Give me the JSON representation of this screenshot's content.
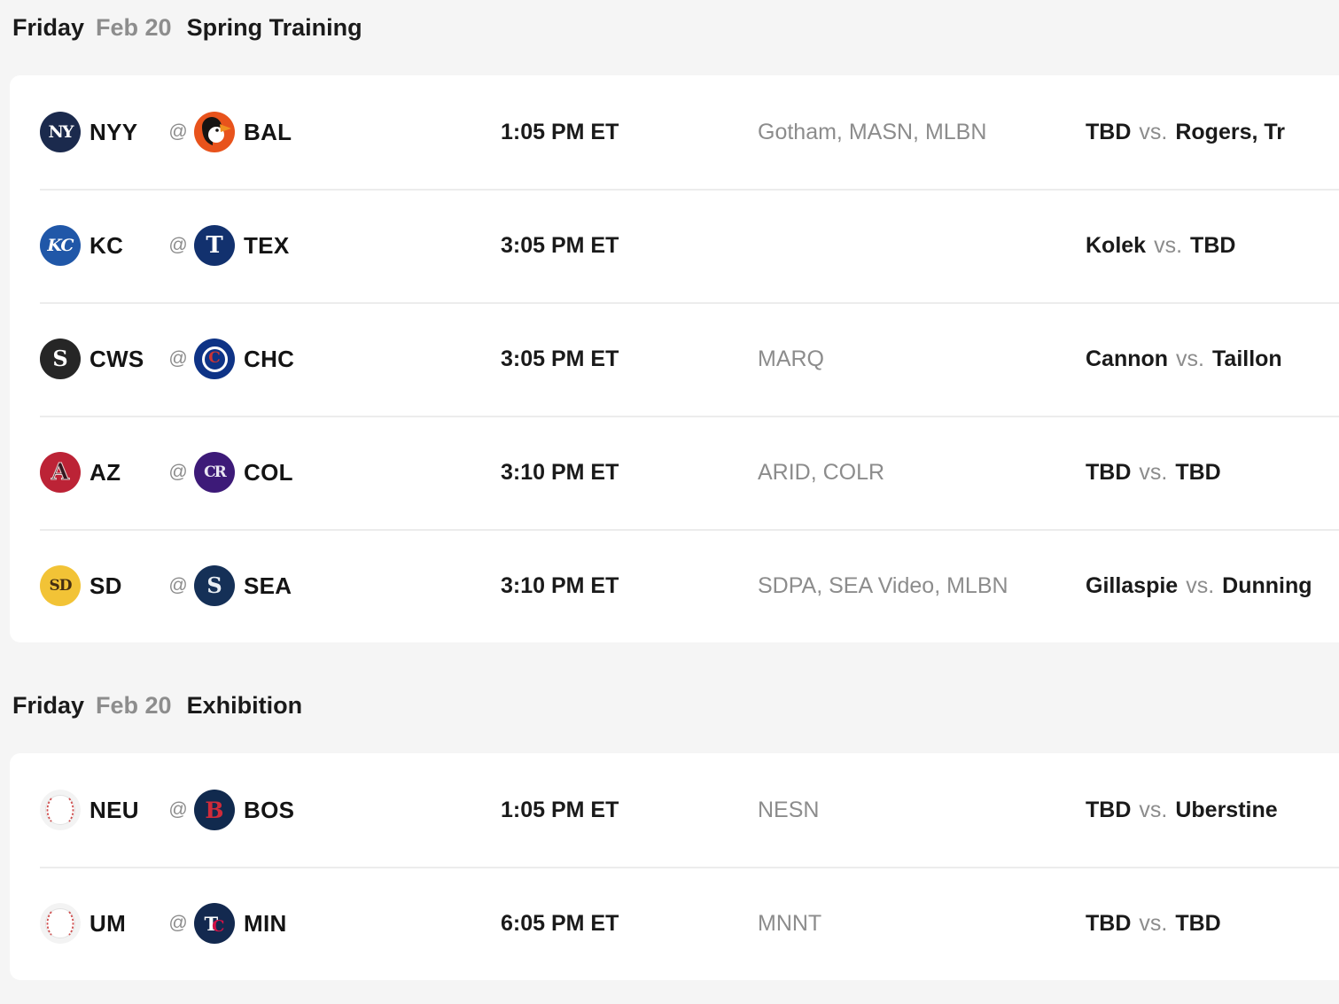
{
  "sections": [
    {
      "header": {
        "day": "Friday",
        "date": "Feb 20",
        "label": "Spring Training"
      },
      "games": [
        {
          "away": {
            "abbr": "NYY",
            "logo": "nyy"
          },
          "home": {
            "abbr": "BAL",
            "logo": "bal"
          },
          "at": "@",
          "time": "1:05 PM ET",
          "tv": "Gotham, MASN, MLBN",
          "pitchers": {
            "away": "TBD",
            "vs": "vs.",
            "home": "Rogers, Tr"
          }
        },
        {
          "away": {
            "abbr": "KC",
            "logo": "kc"
          },
          "home": {
            "abbr": "TEX",
            "logo": "tex"
          },
          "at": "@",
          "time": "3:05 PM ET",
          "tv": "",
          "pitchers": {
            "away": "Kolek",
            "vs": "vs.",
            "home": "TBD"
          }
        },
        {
          "away": {
            "abbr": "CWS",
            "logo": "cws"
          },
          "home": {
            "abbr": "CHC",
            "logo": "chc"
          },
          "at": "@",
          "time": "3:05 PM ET",
          "tv": "MARQ",
          "pitchers": {
            "away": "Cannon",
            "vs": "vs.",
            "home": "Taillon"
          }
        },
        {
          "away": {
            "abbr": "AZ",
            "logo": "az"
          },
          "home": {
            "abbr": "COL",
            "logo": "col"
          },
          "at": "@",
          "time": "3:10 PM ET",
          "tv": "ARID, COLR",
          "pitchers": {
            "away": "TBD",
            "vs": "vs.",
            "home": "TBD"
          }
        },
        {
          "away": {
            "abbr": "SD",
            "logo": "sd"
          },
          "home": {
            "abbr": "SEA",
            "logo": "sea"
          },
          "at": "@",
          "time": "3:10 PM ET",
          "tv": "SDPA, SEA Video, MLBN",
          "pitchers": {
            "away": "Gillaspie",
            "vs": "vs.",
            "home": "Dunning"
          }
        }
      ]
    },
    {
      "header": {
        "day": "Friday",
        "date": "Feb 20",
        "label": "Exhibition"
      },
      "games": [
        {
          "away": {
            "abbr": "NEU",
            "logo": "ball"
          },
          "home": {
            "abbr": "BOS",
            "logo": "bos"
          },
          "at": "@",
          "time": "1:05 PM ET",
          "tv": "NESN",
          "pitchers": {
            "away": "TBD",
            "vs": "vs.",
            "home": "Uberstine"
          }
        },
        {
          "away": {
            "abbr": "UM",
            "logo": "ball"
          },
          "home": {
            "abbr": "MIN",
            "logo": "min"
          },
          "at": "@",
          "time": "6:05 PM ET",
          "tv": "MNNT",
          "pitchers": {
            "away": "TBD",
            "vs": "vs.",
            "home": "TBD"
          }
        }
      ]
    }
  ],
  "colors": {
    "page_bg": "#f5f5f5",
    "card_bg": "#ffffff",
    "muted_text": "#8c8c8c",
    "primary_text": "#161616"
  },
  "logos": {
    "nyy": {
      "bg": "#1b2a4d",
      "text": "NY",
      "fg": "#ffffff",
      "font": "serif",
      "size": 19,
      "ls": -2
    },
    "bal": {
      "bg": "#e8531c",
      "type": "bird"
    },
    "kc": {
      "bg": "#2057a8",
      "text": "KC",
      "fg": "#ffffff",
      "font": "script",
      "size": 19,
      "ls": -1
    },
    "tex": {
      "bg": "#12316e",
      "text": "T",
      "fg": "#ffffff",
      "font": "serif",
      "size": 26
    },
    "cws": {
      "bg": "#262626",
      "text": "S",
      "fg": "#ffffff",
      "font": "serif",
      "size": 24
    },
    "chc": {
      "bg": "#0e3386",
      "type": "cubs"
    },
    "az": {
      "bg": "#bc2336",
      "text": "A",
      "fg": "#34171f",
      "font": "serif",
      "size": 26,
      "stroke": "#e9d4d4"
    },
    "col": {
      "bg": "#3d1a78",
      "text": "CR",
      "fg": "#e9e6f2",
      "font": "serif",
      "size": 17,
      "ls": -2
    },
    "sd": {
      "bg": "#f2c336",
      "text": "SD",
      "fg": "#452f12",
      "font": "serif",
      "size": 17,
      "ls": -1
    },
    "sea": {
      "bg": "#153057",
      "text": "S",
      "fg": "#e9eef3",
      "font": "serif",
      "size": 24
    },
    "bos": {
      "bg": "#112a4e",
      "text": "B",
      "fg": "#cf2b3a",
      "font": "serif",
      "size": 25
    },
    "min": {
      "bg": "#13294f",
      "type": "min"
    },
    "ball": {
      "bg": "#ffffff",
      "type": "baseball"
    }
  }
}
